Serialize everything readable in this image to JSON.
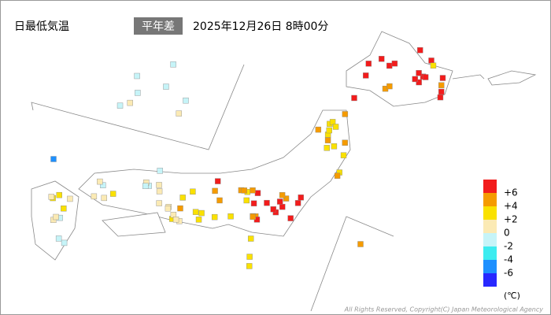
{
  "header": {
    "title": "日最低気温",
    "badge": "平年差",
    "datetime": "2025年12月26日 8時00分"
  },
  "legend": {
    "levels": [
      {
        "value": 6,
        "label": "+6"
      },
      {
        "value": 4,
        "label": "+4"
      },
      {
        "value": 2,
        "label": "+2"
      },
      0,
      -2,
      -4,
      -6
    ],
    "colors": [
      "#f21c1c",
      "#f59b00",
      "#fae100",
      "#fbeab4",
      "#c6f4f8",
      "#3cecf0",
      "#1e90ff",
      "#2828ff"
    ],
    "unit": "(℃)"
  },
  "stations": [
    [
      7,
      7,
      7,
      5,
      7,
      7,
      7,
      5,
      7,
      7,
      7,
      7,
      5,
      7,
      7,
      7,
      3,
      7,
      7,
      7
    ],
    [
      3,
      5,
      3,
      3,
      5,
      3,
      5,
      3,
      3,
      5,
      3,
      3,
      5,
      3
    ],
    [
      7,
      7,
      7,
      5,
      7,
      7,
      7,
      5,
      7,
      7,
      7,
      5,
      7,
      7
    ],
    [
      5,
      5,
      3,
      5,
      7,
      5,
      3,
      5,
      5,
      3,
      5,
      3
    ],
    [
      3,
      3,
      1,
      3,
      3,
      5,
      1,
      3,
      3,
      1
    ],
    [
      1,
      -1,
      1,
      1,
      -1,
      1,
      1,
      -1,
      1,
      3,
      1,
      -1,
      1,
      1
    ],
    [
      -1,
      1,
      3,
      1,
      -1,
      3,
      1,
      -1,
      1,
      3
    ],
    [
      -1,
      -1,
      1,
      -1,
      -1,
      -1,
      1,
      -1
    ],
    [
      3,
      3,
      3
    ],
    [
      -5
    ],
    [
      5
    ]
  ],
  "copyright": "All Rights Reserved, Copyright(C) Japan Meteorological Agency"
}
